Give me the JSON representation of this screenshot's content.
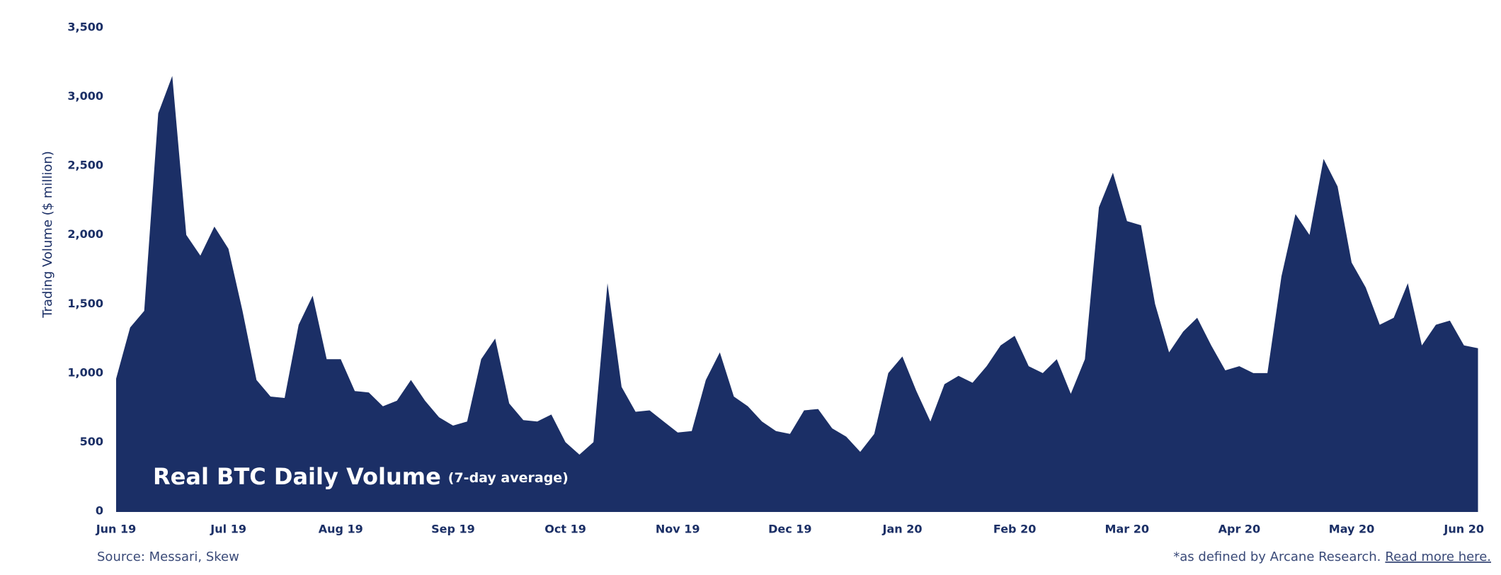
{
  "chart_data": {
    "type": "area",
    "title": "Real BTC Daily Volume",
    "subtitle": "(7-day average)",
    "y_label": "Trading Volume ($ million)",
    "source": "Source: Messari, Skew",
    "footnote": "*as defined by Arcane Research.",
    "link": "Read more here.",
    "color": "#1b2f66",
    "categories": [
      "Jun 19",
      null,
      null,
      null,
      null,
      null,
      null,
      null,
      "Jul 19",
      null,
      null,
      null,
      null,
      null,
      null,
      null,
      "Aug 19",
      null,
      null,
      null,
      null,
      null,
      null,
      null,
      "Sep 19",
      null,
      null,
      null,
      null,
      null,
      null,
      null,
      "Oct 19",
      null,
      null,
      null,
      null,
      null,
      null,
      null,
      "Nov 19",
      null,
      null,
      null,
      null,
      null,
      null,
      null,
      "Dec 19",
      null,
      null,
      null,
      null,
      null,
      null,
      null,
      "Jan 20",
      null,
      null,
      null,
      null,
      null,
      null,
      null,
      "Feb 20",
      null,
      null,
      null,
      null,
      null,
      null,
      null,
      "Mar 20",
      null,
      null,
      null,
      null,
      null,
      null,
      null,
      "Apr 20",
      null,
      null,
      null,
      null,
      null,
      null,
      null,
      "May 20",
      null,
      null,
      null,
      null,
      null,
      null,
      null,
      "Jun 20",
      null
    ],
    "values": [
      960,
      1330,
      1450,
      2880,
      3150,
      2000,
      1850,
      2060,
      1900,
      1450,
      950,
      830,
      820,
      1350,
      1560,
      1100,
      1100,
      870,
      860,
      760,
      800,
      950,
      800,
      680,
      620,
      650,
      1100,
      1250,
      780,
      660,
      650,
      700,
      500,
      410,
      500,
      1650,
      900,
      720,
      730,
      650,
      570,
      580,
      950,
      1150,
      830,
      760,
      650,
      580,
      560,
      730,
      740,
      600,
      540,
      430,
      560,
      1000,
      1120,
      870,
      650,
      920,
      980,
      930,
      1050,
      1200,
      1270,
      1050,
      1000,
      1100,
      850,
      1100,
      2200,
      2450,
      2100,
      2070,
      1500,
      1150,
      1300,
      1400,
      1200,
      1020,
      1050,
      1000,
      1000,
      1700,
      2150,
      2000,
      2550,
      2350,
      1800,
      1620,
      1350,
      1400,
      1650,
      1200,
      1350,
      1380,
      1200,
      1180
    ],
    "ylim": [
      0,
      3500
    ],
    "yticks": [
      0,
      500,
      {
        "value": 1000,
        "label": "1,000"
      },
      {
        "value": 1500,
        "label": "1,500"
      },
      {
        "value": 2000,
        "label": "2,000"
      },
      {
        "value": 2500,
        "label": "2,500"
      },
      {
        "value": 3000,
        "label": "3,000"
      },
      {
        "value": 3500,
        "label": "3,500"
      }
    ],
    "grid": false
  }
}
